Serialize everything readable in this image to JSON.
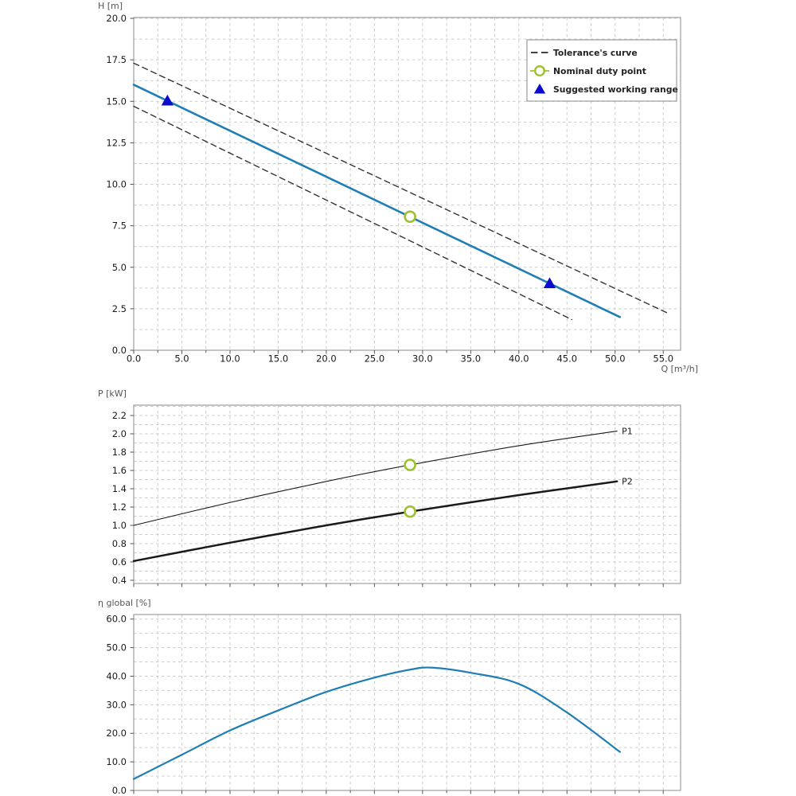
{
  "figure": {
    "background": "#ffffff"
  },
  "colors": {
    "curve_blue": "#1f7fb4",
    "duty_green": "#9cc22e",
    "range_blue": "#0b0bcd",
    "tolerance": "#333333",
    "power_black": "#1a1a1a",
    "grid": "#cccccc",
    "spine": "#9e9e9e",
    "tick_text": "#1a1a1a",
    "axis_text": "#555555",
    "legend_text": "#222222",
    "legend_border": "#8a8a8a"
  },
  "chart_data": [
    {
      "id": "head_curve",
      "type": "line",
      "title": "Pump head curve H(Q) with tolerance band",
      "ylabel": "H [m]",
      "xlabel": "Q [m³/h]",
      "xlim": [
        0,
        56.8
      ],
      "ylim": [
        0,
        20.05
      ],
      "xtick_values": [
        0,
        5,
        10,
        15,
        20,
        25,
        30,
        35,
        40,
        45,
        50,
        55
      ],
      "xtick_labels": [
        "0.0",
        "5.0",
        "10.0",
        "15.0",
        "20.0",
        "25.0",
        "30.0",
        "35.0",
        "40.0",
        "45.0",
        "50.0",
        "55.0"
      ],
      "ytick_values": [
        0,
        2.5,
        5,
        7.5,
        10,
        12.5,
        15,
        17.5,
        20
      ],
      "ytick_labels": [
        "0.0",
        "2.5",
        "5.0",
        "7.5",
        "10.0",
        "12.5",
        "15.0",
        "17.5",
        "20.0"
      ],
      "minor_x_step": 2.5,
      "minor_y_step": 1.25,
      "grid": true,
      "series": [
        {
          "name": "pump-curve",
          "style": "solid",
          "color_key": "curve_blue",
          "width": 2.6,
          "points": [
            [
              0,
              16.0
            ],
            [
              50.5,
              2.0
            ]
          ]
        },
        {
          "name": "tolerance-curve-upper",
          "style": "dashed",
          "color_key": "tolerance",
          "width": 1.4,
          "points": [
            [
              0,
              17.3
            ],
            [
              55.6,
              2.2
            ]
          ]
        },
        {
          "name": "tolerance-curve-lower",
          "style": "dashed",
          "color_key": "tolerance",
          "width": 1.4,
          "points": [
            [
              0,
              14.7
            ],
            [
              45.5,
              1.85
            ]
          ]
        }
      ],
      "markers": [
        {
          "kind": "circle-open",
          "name": "nominal-duty-point",
          "q": 28.7,
          "v": 8.05
        },
        {
          "kind": "triangle",
          "name": "working-range-min",
          "q": 3.5,
          "v": 15.03
        },
        {
          "kind": "triangle",
          "name": "working-range-max",
          "q": 43.2,
          "v": 4.02
        }
      ],
      "legend": {
        "position": "upper-right",
        "items": [
          {
            "marker": "dashed-line",
            "label": "Tolerance's curve"
          },
          {
            "marker": "open-circle",
            "label": "Nominal duty point"
          },
          {
            "marker": "triangle",
            "label": "Suggested working range"
          }
        ]
      }
    },
    {
      "id": "power_curves",
      "type": "line",
      "title": "Pump power curves P1 and P2",
      "ylabel": "P [kW]",
      "xlabel": "",
      "xlim": [
        0,
        56.8
      ],
      "ylim": [
        0.365,
        2.313
      ],
      "xtick_values": [
        0,
        5,
        10,
        15,
        20,
        25,
        30,
        35,
        40,
        45,
        50,
        55
      ],
      "xtick_labels": null,
      "ytick_values": [
        0.4,
        0.6,
        0.8,
        1.0,
        1.2,
        1.4,
        1.6,
        1.8,
        2.0,
        2.2
      ],
      "ytick_labels": [
        "0.4",
        "0.6",
        "0.8",
        "1.0",
        "1.2",
        "1.4",
        "1.6",
        "1.8",
        "2.0",
        "2.2"
      ],
      "minor_x_step": 2.5,
      "minor_y_step": 0.1,
      "grid": true,
      "series": [
        {
          "name": "P1-curve",
          "label": "P1",
          "style": "solid",
          "color_key": "power_black",
          "width": 1.1,
          "points": [
            [
              0,
              1.0
            ],
            [
              10,
              1.25
            ],
            [
              20,
              1.48
            ],
            [
              28.7,
              1.66
            ],
            [
              40,
              1.87
            ],
            [
              50.2,
              2.03
            ]
          ]
        },
        {
          "name": "P2-curve",
          "label": "P2",
          "style": "solid",
          "color_key": "power_black",
          "width": 2.5,
          "points": [
            [
              0,
              0.61
            ],
            [
              10,
              0.81
            ],
            [
              20,
              1.0
            ],
            [
              28.7,
              1.15
            ],
            [
              40,
              1.33
            ],
            [
              50.2,
              1.48
            ]
          ]
        }
      ],
      "markers": [
        {
          "kind": "circle-open",
          "name": "duty-point-p1",
          "q": 28.7,
          "v": 1.66
        },
        {
          "kind": "circle-open",
          "name": "duty-point-p2",
          "q": 28.7,
          "v": 1.15
        }
      ]
    },
    {
      "id": "efficiency_curve",
      "type": "line",
      "title": "Global efficiency curve",
      "ylabel": "η global [%]",
      "xlabel": "",
      "xlim": [
        0,
        56.8
      ],
      "ylim": [
        0,
        61.6
      ],
      "xtick_values": [
        0,
        5,
        10,
        15,
        20,
        25,
        30,
        35,
        40,
        45,
        50,
        55
      ],
      "xtick_labels": null,
      "ytick_values": [
        0,
        10,
        20,
        30,
        40,
        50,
        60
      ],
      "ytick_labels": [
        "0.0",
        "10.0",
        "20.0",
        "30.0",
        "40.0",
        "50.0",
        "60.0"
      ],
      "minor_x_step": 2.5,
      "minor_y_step": 5,
      "grid": true,
      "series": [
        {
          "name": "efficiency-curve",
          "style": "solid",
          "color_key": "curve_blue",
          "width": 2.2,
          "points": [
            [
              0,
              4
            ],
            [
              5,
              12.5
            ],
            [
              10,
              21
            ],
            [
              15,
              28
            ],
            [
              20,
              34.5
            ],
            [
              25,
              39.5
            ],
            [
              28.7,
              42.3
            ],
            [
              31,
              43
            ],
            [
              35,
              41.2
            ],
            [
              40,
              37.3
            ],
            [
              45,
              27.3
            ],
            [
              50.5,
              13.5
            ]
          ]
        }
      ]
    }
  ]
}
